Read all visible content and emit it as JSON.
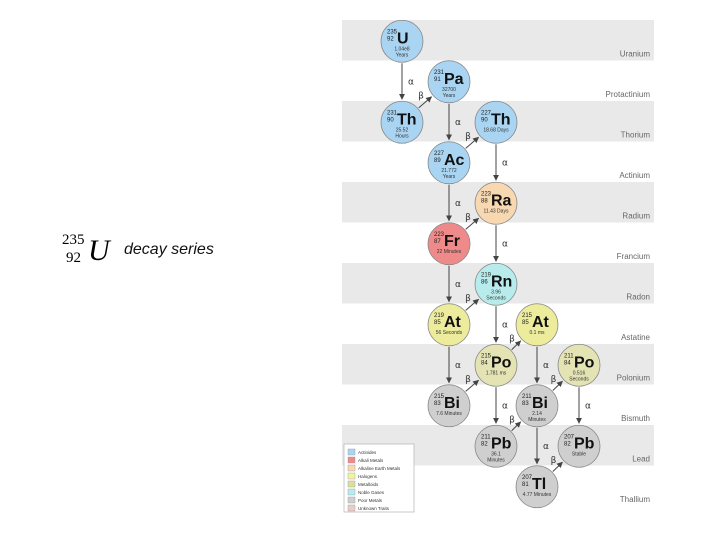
{
  "title": {
    "mass_number": "235",
    "atomic_number": "92",
    "symbol": "U",
    "caption": "decay series"
  },
  "bands": [
    "Uranium",
    "Protactinium",
    "Thorium",
    "Actinium",
    "Radium",
    "Francium",
    "Radon",
    "Astatine",
    "Polonium",
    "Bismuth",
    "Lead",
    "Thallium"
  ],
  "nodes": [
    {
      "id": "u235",
      "mass": "235",
      "z": "92",
      "sym": "U",
      "hl": "1.04e8",
      "hl2": "Years",
      "color": "#a9d4f2"
    },
    {
      "id": "pa231",
      "mass": "231",
      "z": "91",
      "sym": "Pa",
      "hl": "32700",
      "hl2": "Years",
      "color": "#a9d4f2"
    },
    {
      "id": "th231",
      "mass": "231",
      "z": "90",
      "sym": "Th",
      "hl": "25.52",
      "hl2": "Hours",
      "color": "#a9d4f2"
    },
    {
      "id": "th227",
      "mass": "227",
      "z": "90",
      "sym": "Th",
      "hl": "18.68 Days",
      "hl2": "",
      "color": "#a9d4f2"
    },
    {
      "id": "ac227",
      "mass": "227",
      "z": "89",
      "sym": "Ac",
      "hl": "21.772",
      "hl2": "Years",
      "color": "#a9d4f2"
    },
    {
      "id": "ra223",
      "mass": "223",
      "z": "88",
      "sym": "Ra",
      "hl": "11.43 Days",
      "hl2": "",
      "color": "#f7d8b0"
    },
    {
      "id": "fr223",
      "mass": "223",
      "z": "87",
      "sym": "Fr",
      "hl": "22 Minutes",
      "hl2": "",
      "color": "#ee8a8a"
    },
    {
      "id": "rn219",
      "mass": "219",
      "z": "86",
      "sym": "Rn",
      "hl": "3.96",
      "hl2": "Seconds",
      "color": "#b8ecec"
    },
    {
      "id": "at219",
      "mass": "219",
      "z": "85",
      "sym": "At",
      "hl": "56 Seconds",
      "hl2": "",
      "color": "#ecec9c"
    },
    {
      "id": "at215",
      "mass": "215",
      "z": "85",
      "sym": "At",
      "hl": "0.1 ms",
      "hl2": "",
      "color": "#ecec9c"
    },
    {
      "id": "po215",
      "mass": "215",
      "z": "84",
      "sym": "Po",
      "hl": "1.781 ms",
      "hl2": "",
      "color": "#e3e3b4"
    },
    {
      "id": "po211",
      "mass": "211",
      "z": "84",
      "sym": "Po",
      "hl": "0.516",
      "hl2": "Seconds",
      "color": "#e3e3b4"
    },
    {
      "id": "bi215",
      "mass": "215",
      "z": "83",
      "sym": "Bi",
      "hl": "7.6 Minutes",
      "hl2": "",
      "color": "#cfcfcf"
    },
    {
      "id": "bi211",
      "mass": "211",
      "z": "83",
      "sym": "Bi",
      "hl": "2.14",
      "hl2": "Minutes",
      "color": "#cfcfcf"
    },
    {
      "id": "pb211",
      "mass": "211",
      "z": "82",
      "sym": "Pb",
      "hl": "36.1",
      "hl2": "Minutes",
      "color": "#cfcfcf"
    },
    {
      "id": "pb207",
      "mass": "207",
      "z": "82",
      "sym": "Pb",
      "hl": "Stable",
      "hl2": "",
      "color": "#cfcfcf"
    },
    {
      "id": "tl207",
      "mass": "207",
      "z": "81",
      "sym": "Tl",
      "hl": "4.77 Minutes",
      "hl2": "",
      "color": "#cfcfcf"
    }
  ],
  "edges": [
    {
      "from": "u235",
      "to": "th231",
      "label": "α"
    },
    {
      "from": "th231",
      "to": "pa231",
      "label": "β"
    },
    {
      "from": "pa231",
      "to": "ac227",
      "label": "α"
    },
    {
      "from": "ac227",
      "to": "th227",
      "label": "β"
    },
    {
      "from": "ac227",
      "to": "fr223",
      "label": "α"
    },
    {
      "from": "th227",
      "to": "ra223",
      "label": "α"
    },
    {
      "from": "fr223",
      "to": "ra223",
      "label": "β"
    },
    {
      "from": "ra223",
      "to": "rn219",
      "label": "α"
    },
    {
      "from": "fr223",
      "to": "at219",
      "label": "α"
    },
    {
      "from": "at219",
      "to": "rn219",
      "label": "β"
    },
    {
      "from": "rn219",
      "to": "po215",
      "label": "α"
    },
    {
      "from": "at219",
      "to": "bi215",
      "label": "α"
    },
    {
      "from": "po215",
      "to": "at215",
      "label": "β"
    },
    {
      "from": "po215",
      "to": "pb211",
      "label": "α"
    },
    {
      "from": "bi215",
      "to": "po215",
      "label": "β"
    },
    {
      "from": "at215",
      "to": "bi211",
      "label": "α"
    },
    {
      "from": "pb211",
      "to": "bi211",
      "label": "β"
    },
    {
      "from": "bi211",
      "to": "po211",
      "label": "β"
    },
    {
      "from": "bi211",
      "to": "tl207",
      "label": "α"
    },
    {
      "from": "po211",
      "to": "pb207",
      "label": "α"
    },
    {
      "from": "tl207",
      "to": "pb207",
      "label": "β"
    }
  ],
  "legend": [
    {
      "label": "Actinides",
      "color": "#a9d4f2"
    },
    {
      "label": "Alkali Metals",
      "color": "#ee8a8a"
    },
    {
      "label": "Alkaline Earth Metals",
      "color": "#f7d8b0"
    },
    {
      "label": "Halogens",
      "color": "#f3f3a8"
    },
    {
      "label": "Metalloids",
      "color": "#dede9a"
    },
    {
      "label": "Noble Gases",
      "color": "#b8ecec"
    },
    {
      "label": "Poor Metals",
      "color": "#cfcfcf"
    },
    {
      "label": "Unknown Traits",
      "color": "#eecaca"
    }
  ]
}
